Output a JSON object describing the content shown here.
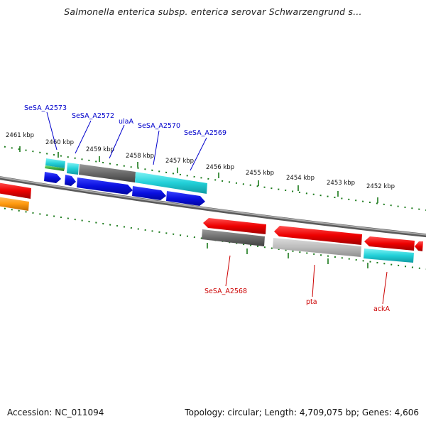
{
  "title": "Salmonella enterica subsp. enterica serovar Schwarzengrund s...",
  "footer": {
    "accession": "Accession: NC_011094",
    "summary": "Topology: circular; Length: 4,709,075 bp; Genes: 4,606"
  },
  "scale_labels": [
    "2461 kbp",
    "2460 kbp",
    "2459 kbp",
    "2458 kbp",
    "2457 kbp",
    "2456 kbp",
    "2455 kbp",
    "2454 kbp",
    "2453 kbp",
    "2452 kbp"
  ],
  "upper_gene_labels": [
    "SeSA_A2573",
    "SeSA_A2572",
    "ulaA",
    "SeSA_A2570",
    "SeSA_A2569"
  ],
  "lower_gene_labels": [
    "SeSA_A2568",
    "pta",
    "ackA"
  ],
  "colors": {
    "upper_label": "#0000cc",
    "lower_label": "#cc0000",
    "tick": "#1a7a1a",
    "backbone": "#8a8a8a",
    "gene_blue": "#0a10e0",
    "gene_red": "#ee0000",
    "gene_cyan": "#22d0d8",
    "gene_gray": "#707070",
    "gene_lightgray": "#b8b8b8",
    "gene_orange": "#ff9a10",
    "gene_green": "#40b040"
  }
}
